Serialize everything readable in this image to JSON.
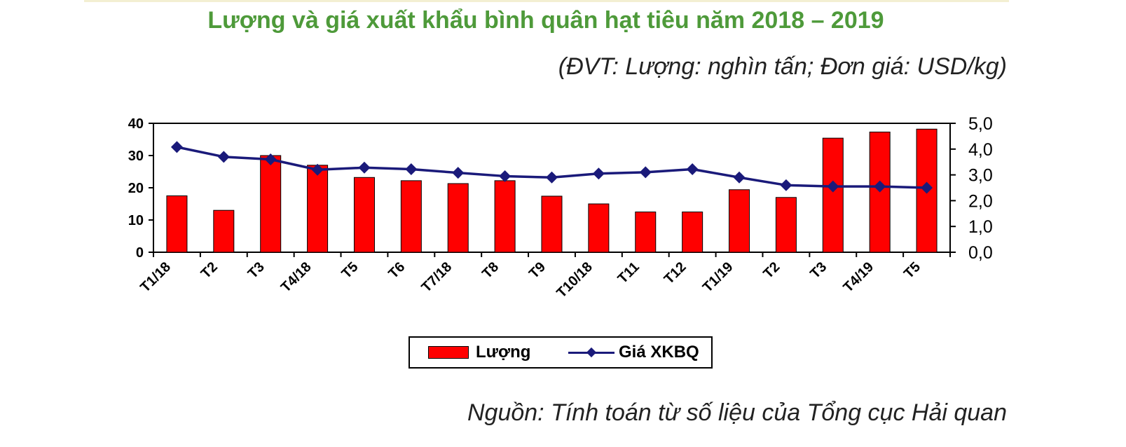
{
  "header": {
    "title": "Lượng và giá xuất khẩu bình quân hạt tiêu năm 2018 – 2019",
    "unit_note": "(ĐVT: Lượng: nghìn tấn; Đơn giá: USD/kg)"
  },
  "footer": {
    "source": "Nguồn: Tính toán từ số liệu của Tổng cục Hải quan"
  },
  "colors": {
    "title": "#4e9a3a",
    "bar": "#ff0000",
    "line": "#1a1a7a"
  },
  "chart_data": {
    "type": "bar",
    "title": "Lượng và giá xuất khẩu bình quân hạt tiêu năm 2018 – 2019",
    "categories": [
      "T1/18",
      "T2",
      "T3",
      "T4/18",
      "T5",
      "T6",
      "T7/18",
      "T8",
      "T9",
      "T10/18",
      "T11",
      "T12",
      "T1/19",
      "T2",
      "T3",
      "T4/19",
      "T5"
    ],
    "series": [
      {
        "name": "Lượng",
        "type": "bar",
        "axis": "left",
        "values": [
          17.5,
          13,
          30,
          27,
          23.2,
          22.2,
          21.3,
          22.2,
          17.4,
          15,
          12.5,
          12.5,
          19.4,
          17,
          35.4,
          37.3,
          38.2
        ]
      },
      {
        "name": "Giá XKBQ",
        "type": "line",
        "axis": "right",
        "values": [
          4.08,
          3.7,
          3.6,
          3.2,
          3.28,
          3.22,
          3.08,
          2.95,
          2.9,
          3.05,
          3.1,
          3.22,
          2.9,
          2.6,
          2.55,
          2.55,
          2.5
        ]
      }
    ],
    "y_left": {
      "min": 0,
      "max": 40,
      "ticks": [
        "0",
        "10",
        "20",
        "30",
        "40"
      ]
    },
    "y_right": {
      "min": 0,
      "max": 5,
      "ticks": [
        "0,0",
        "1,0",
        "2,0",
        "3,0",
        "4,0",
        "5,0"
      ]
    },
    "grid": false,
    "legend": [
      "Lượng",
      "Giá XKBQ"
    ],
    "legend_position": "bottom-center"
  }
}
